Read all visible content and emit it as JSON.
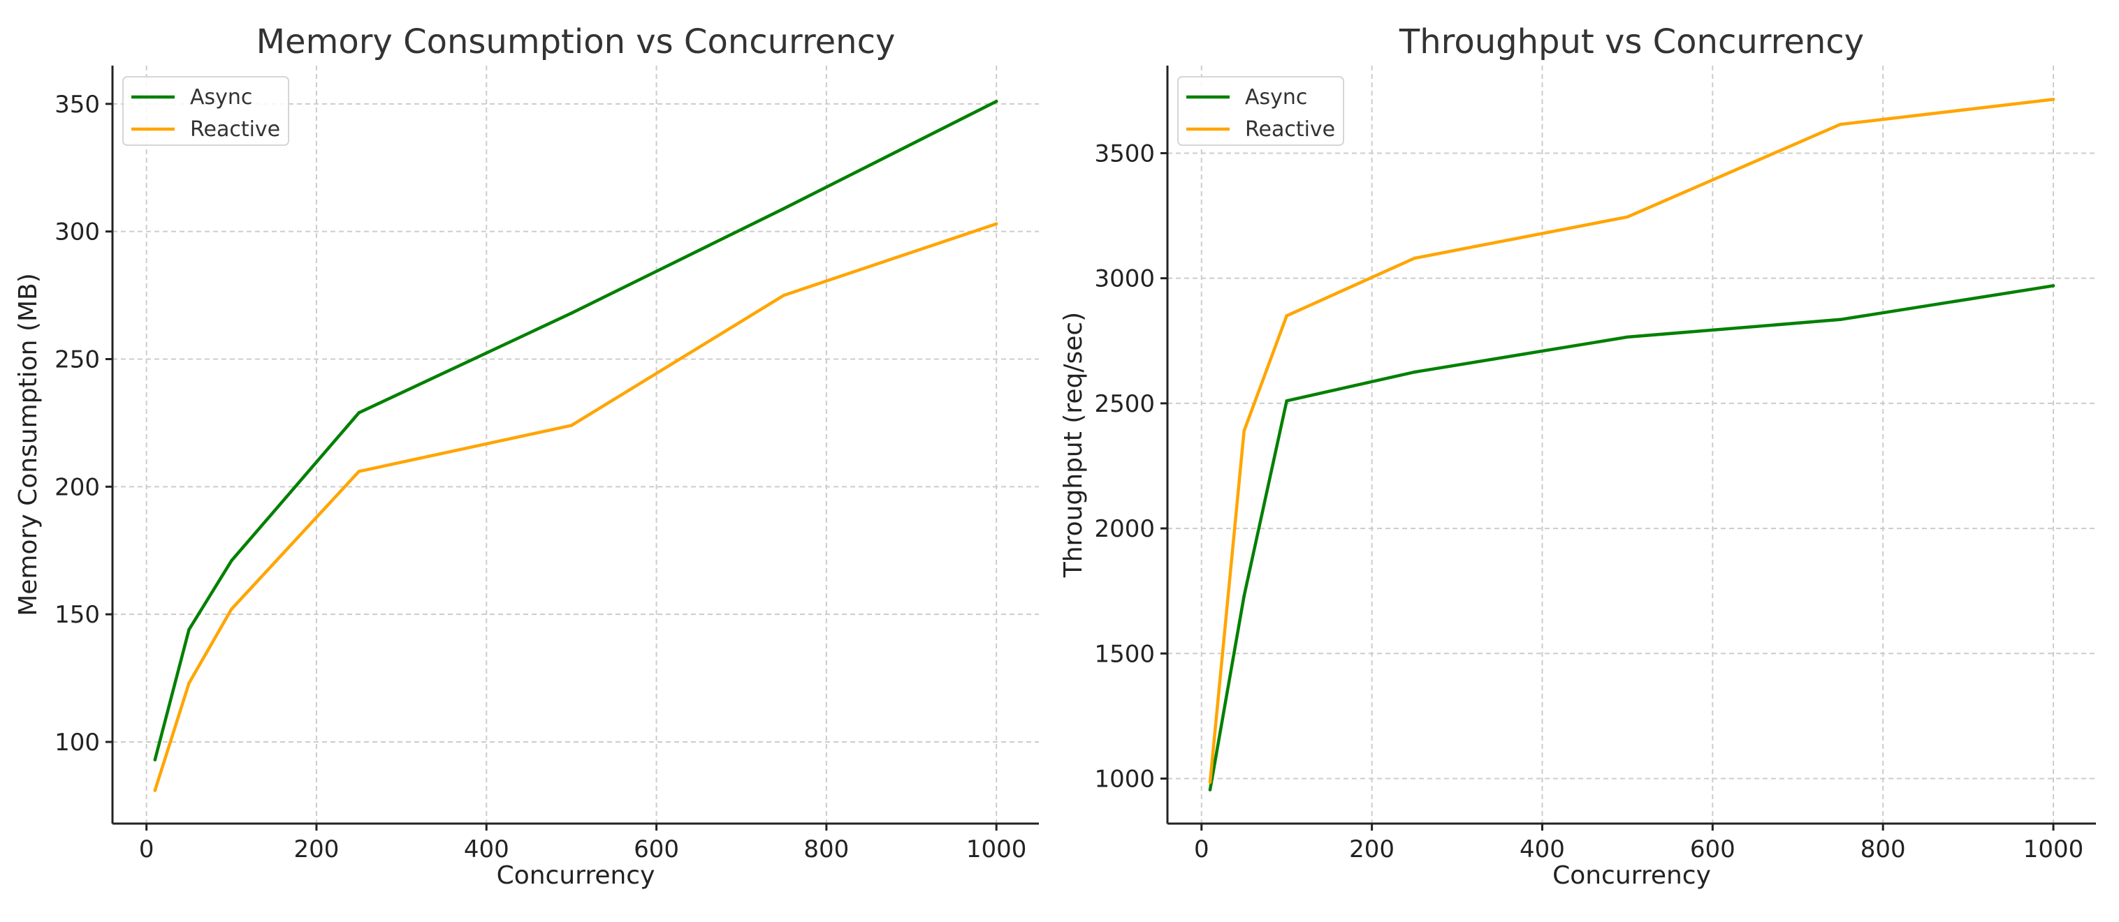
{
  "chart_data": [
    {
      "type": "line",
      "title": "Memory Consumption vs Concurrency",
      "xlabel": "Concurrency",
      "ylabel": "Memory Consumption (MB)",
      "x": [
        10,
        50,
        100,
        250,
        500,
        750,
        1000
      ],
      "xlim": [
        -40,
        1050
      ],
      "ylim": [
        68,
        365
      ],
      "xticks": [
        0,
        200,
        400,
        600,
        800,
        1000
      ],
      "yticks": [
        100,
        150,
        200,
        250,
        300,
        350
      ],
      "grid": true,
      "legend_position": "top-left",
      "series": [
        {
          "name": "Async",
          "color": "#008000",
          "values": [
            93,
            144,
            171,
            229,
            268,
            309,
            351
          ]
        },
        {
          "name": "Reactive",
          "color": "#FFA500",
          "values": [
            81,
            123,
            152,
            206,
            224,
            275,
            303
          ]
        }
      ]
    },
    {
      "type": "line",
      "title": "Throughput vs Concurrency",
      "xlabel": "Concurrency",
      "ylabel": "Throughput (req/sec)",
      "x": [
        10,
        50,
        100,
        250,
        500,
        750,
        1000
      ],
      "xlim": [
        -40,
        1050
      ],
      "ylim": [
        820,
        3850
      ],
      "xticks": [
        0,
        200,
        400,
        600,
        800,
        1000
      ],
      "yticks": [
        1000,
        1500,
        2000,
        2500,
        3000,
        3500
      ],
      "grid": true,
      "legend_position": "top-left",
      "series": [
        {
          "name": "Async",
          "color": "#008000",
          "values": [
            955,
            1730,
            2510,
            2625,
            2765,
            2835,
            2970
          ]
        },
        {
          "name": "Reactive",
          "color": "#FFA500",
          "values": [
            985,
            2390,
            2850,
            3080,
            3245,
            3615,
            3715
          ]
        }
      ]
    }
  ]
}
